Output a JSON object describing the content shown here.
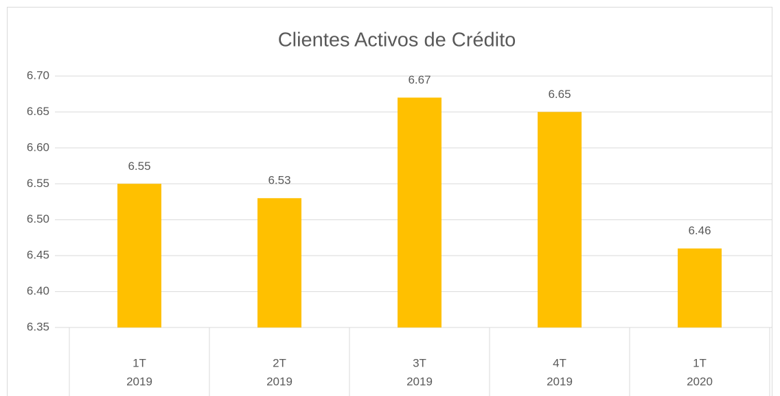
{
  "chart_data": {
    "type": "bar",
    "title": "Clientes Activos de Crédito",
    "categories": [
      "1T",
      "2T",
      "3T",
      "4T",
      "1T"
    ],
    "category_groups": [
      "2019",
      "2019",
      "2019",
      "2019",
      "2020"
    ],
    "values": [
      6.55,
      6.53,
      6.67,
      6.65,
      6.46
    ],
    "color": "#ffc000",
    "ylim": [
      6.35,
      6.7
    ],
    "yticks": [
      6.35,
      {
        "value": 6.4,
        "label": "6.40"
      },
      6.45,
      {
        "value": 6.5,
        "label": "6.50"
      },
      6.55,
      {
        "value": 6.6,
        "label": "6.60"
      },
      6.65,
      {
        "value": 6.7,
        "label": "6.70"
      }
    ],
    "grid": true
  }
}
